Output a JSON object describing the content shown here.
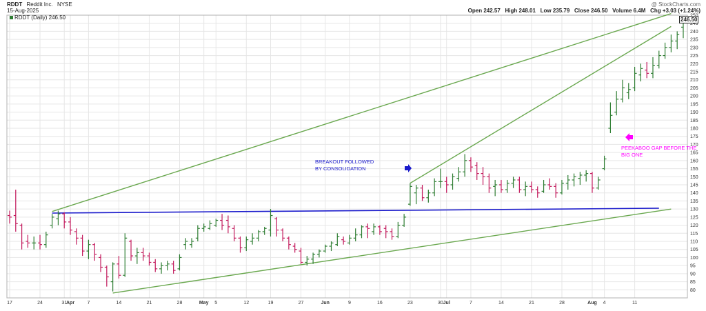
{
  "header": {
    "symbol": "RDDT",
    "company": "Reddit Inc.",
    "exchange": "NYSE",
    "date": "15-Aug-2025",
    "credit": "@ StockCharts.com",
    "ohlc_line": "Open 242.57   High 248.01   Low 235.79   Close 246.50   Volume 6.4M   Chg +3.03 (+1.24%)",
    "legend": "RDDT (Daily) 246.50",
    "last_price_tag": "246.50"
  },
  "colors": {
    "up": "#2e7d32",
    "down": "#c2185b",
    "trendline": "#6aa84f",
    "support": "#1a1acb",
    "annotation_blue": "#1a1acb",
    "annotation_magenta": "#ff00ff",
    "grid": "#e6e6e6"
  },
  "annotations": [
    {
      "text": "BREAKOUT FOLLOWED",
      "color": "#1a1acb"
    },
    {
      "text": "BY CONSOLIDATION",
      "color": "#1a1acb"
    },
    {
      "text": "PEEKABOO GAP BEFORE THE",
      "color": "#ff00ff"
    },
    {
      "text": "BIG ONE",
      "color": "#ff00ff"
    }
  ],
  "chart_data": {
    "type": "ohlc",
    "title": "RDDT (Daily) 246.50",
    "ylim": [
      75,
      250
    ],
    "yticks": [
      80,
      85,
      90,
      95,
      100,
      105,
      110,
      115,
      120,
      125,
      130,
      135,
      140,
      145,
      150,
      155,
      160,
      165,
      170,
      175,
      180,
      185,
      190,
      195,
      200,
      205,
      210,
      215,
      220,
      225,
      230,
      235,
      240,
      245,
      250
    ],
    "xtick_labels": [
      "17",
      "24",
      "31",
      "Apr",
      "7",
      "14",
      "21",
      "28",
      "May",
      "5",
      "12",
      "19",
      "27",
      "Jun",
      "9",
      "16",
      "23",
      "30",
      "Jul",
      "7",
      "14",
      "21",
      "28",
      "Aug",
      "4",
      "11"
    ],
    "grid": true,
    "bars": [
      {
        "o": 126,
        "h": 129,
        "l": 121,
        "c": 125
      },
      {
        "o": 126,
        "h": 142,
        "l": 116,
        "c": 121
      },
      {
        "o": 120,
        "h": 121,
        "l": 105,
        "c": 109
      },
      {
        "o": 110,
        "h": 114,
        "l": 106,
        "c": 109
      },
      {
        "o": 109,
        "h": 113,
        "l": 105,
        "c": 109
      },
      {
        "o": 109,
        "h": 114,
        "l": 105,
        "c": 108
      },
      {
        "o": 108,
        "h": 116,
        "l": 106,
        "c": 114
      },
      {
        "o": 120,
        "h": 127,
        "l": 118,
        "c": 125
      },
      {
        "o": 124,
        "h": 129,
        "l": 120,
        "c": 127
      },
      {
        "o": 127,
        "h": 128,
        "l": 118,
        "c": 122
      },
      {
        "o": 122,
        "h": 125,
        "l": 114,
        "c": 117
      },
      {
        "o": 116,
        "h": 118,
        "l": 108,
        "c": 112
      },
      {
        "o": 112,
        "h": 114,
        "l": 101,
        "c": 104
      },
      {
        "o": 104,
        "h": 111,
        "l": 99,
        "c": 108
      },
      {
        "o": 108,
        "h": 109,
        "l": 98,
        "c": 102
      },
      {
        "o": 100,
        "h": 102,
        "l": 91,
        "c": 94
      },
      {
        "o": 94,
        "h": 95,
        "l": 82,
        "c": 88
      },
      {
        "o": 85,
        "h": 97,
        "l": 79,
        "c": 96
      },
      {
        "o": 96,
        "h": 101,
        "l": 87,
        "c": 89
      },
      {
        "o": 89,
        "h": 115,
        "l": 88,
        "c": 112
      },
      {
        "o": 110,
        "h": 111,
        "l": 98,
        "c": 101
      },
      {
        "o": 101,
        "h": 106,
        "l": 96,
        "c": 103
      },
      {
        "o": 103,
        "h": 106,
        "l": 98,
        "c": 101
      },
      {
        "o": 101,
        "h": 103,
        "l": 95,
        "c": 97
      },
      {
        "o": 97,
        "h": 99,
        "l": 91,
        "c": 93
      },
      {
        "o": 93,
        "h": 97,
        "l": 90,
        "c": 95
      },
      {
        "o": 95,
        "h": 98,
        "l": 92,
        "c": 96
      },
      {
        "o": 96,
        "h": 98,
        "l": 90,
        "c": 92
      },
      {
        "o": 93,
        "h": 102,
        "l": 92,
        "c": 100
      },
      {
        "o": 108,
        "h": 112,
        "l": 105,
        "c": 110
      },
      {
        "o": 108,
        "h": 112,
        "l": 106,
        "c": 110
      },
      {
        "o": 112,
        "h": 120,
        "l": 110,
        "c": 118
      },
      {
        "o": 118,
        "h": 121,
        "l": 116,
        "c": 119
      },
      {
        "o": 118,
        "h": 123,
        "l": 117,
        "c": 121
      },
      {
        "o": 120,
        "h": 124,
        "l": 119,
        "c": 123
      },
      {
        "o": 123,
        "h": 127,
        "l": 117,
        "c": 120
      },
      {
        "o": 123,
        "h": 126,
        "l": 115,
        "c": 119
      },
      {
        "o": 118,
        "h": 120,
        "l": 110,
        "c": 112
      },
      {
        "o": 112,
        "h": 113,
        "l": 103,
        "c": 106
      },
      {
        "o": 106,
        "h": 113,
        "l": 104,
        "c": 111
      },
      {
        "o": 110,
        "h": 115,
        "l": 108,
        "c": 112
      },
      {
        "o": 112,
        "h": 117,
        "l": 110,
        "c": 116
      },
      {
        "o": 116,
        "h": 119,
        "l": 114,
        "c": 118
      },
      {
        "o": 117,
        "h": 130,
        "l": 113,
        "c": 126
      },
      {
        "o": 124,
        "h": 125,
        "l": 113,
        "c": 117
      },
      {
        "o": 117,
        "h": 118,
        "l": 110,
        "c": 112
      },
      {
        "o": 112,
        "h": 113,
        "l": 105,
        "c": 108
      },
      {
        "o": 107,
        "h": 109,
        "l": 103,
        "c": 105
      },
      {
        "o": 104,
        "h": 106,
        "l": 96,
        "c": 97
      },
      {
        "o": 97,
        "h": 101,
        "l": 95,
        "c": 99
      },
      {
        "o": 99,
        "h": 103,
        "l": 96,
        "c": 102
      },
      {
        "o": 102,
        "h": 105,
        "l": 100,
        "c": 104
      },
      {
        "o": 104,
        "h": 108,
        "l": 103,
        "c": 107
      },
      {
        "o": 107,
        "h": 110,
        "l": 104,
        "c": 109
      },
      {
        "o": 108,
        "h": 115,
        "l": 107,
        "c": 113
      },
      {
        "o": 111,
        "h": 113,
        "l": 108,
        "c": 110
      },
      {
        "o": 109,
        "h": 114,
        "l": 108,
        "c": 112
      },
      {
        "o": 112,
        "h": 118,
        "l": 110,
        "c": 114
      },
      {
        "o": 114,
        "h": 120,
        "l": 112,
        "c": 119
      },
      {
        "o": 119,
        "h": 121,
        "l": 112,
        "c": 118
      },
      {
        "o": 116,
        "h": 121,
        "l": 114,
        "c": 119
      },
      {
        "o": 119,
        "h": 120,
        "l": 114,
        "c": 116
      },
      {
        "o": 118,
        "h": 120,
        "l": 112,
        "c": 116
      },
      {
        "o": 116,
        "h": 118,
        "l": 111,
        "c": 113
      },
      {
        "o": 113,
        "h": 122,
        "l": 112,
        "c": 120
      },
      {
        "o": 120,
        "h": 127,
        "l": 119,
        "c": 125
      },
      {
        "o": 133,
        "h": 146,
        "l": 132,
        "c": 144
      },
      {
        "o": 140,
        "h": 145,
        "l": 133,
        "c": 143
      },
      {
        "o": 143,
        "h": 145,
        "l": 135,
        "c": 137
      },
      {
        "o": 137,
        "h": 142,
        "l": 134,
        "c": 140
      },
      {
        "o": 140,
        "h": 149,
        "l": 138,
        "c": 147
      },
      {
        "o": 147,
        "h": 155,
        "l": 143,
        "c": 147
      },
      {
        "o": 147,
        "h": 150,
        "l": 140,
        "c": 145
      },
      {
        "o": 145,
        "h": 152,
        "l": 142,
        "c": 150
      },
      {
        "o": 149,
        "h": 156,
        "l": 147,
        "c": 153
      },
      {
        "o": 153,
        "h": 164,
        "l": 150,
        "c": 160
      },
      {
        "o": 160,
        "h": 162,
        "l": 153,
        "c": 156
      },
      {
        "o": 157,
        "h": 159,
        "l": 148,
        "c": 152
      },
      {
        "o": 152,
        "h": 156,
        "l": 145,
        "c": 150
      },
      {
        "o": 150,
        "h": 152,
        "l": 140,
        "c": 143
      },
      {
        "o": 144,
        "h": 148,
        "l": 138,
        "c": 145
      },
      {
        "o": 145,
        "h": 148,
        "l": 140,
        "c": 142
      },
      {
        "o": 142,
        "h": 148,
        "l": 140,
        "c": 146
      },
      {
        "o": 146,
        "h": 150,
        "l": 143,
        "c": 148
      },
      {
        "o": 148,
        "h": 150,
        "l": 140,
        "c": 142
      },
      {
        "o": 142,
        "h": 147,
        "l": 138,
        "c": 144
      },
      {
        "o": 144,
        "h": 147,
        "l": 140,
        "c": 142
      },
      {
        "o": 142,
        "h": 144,
        "l": 137,
        "c": 140
      },
      {
        "o": 141,
        "h": 148,
        "l": 140,
        "c": 145
      },
      {
        "o": 145,
        "h": 149,
        "l": 142,
        "c": 144
      },
      {
        "o": 144,
        "h": 146,
        "l": 137,
        "c": 140
      },
      {
        "o": 140,
        "h": 148,
        "l": 139,
        "c": 146
      },
      {
        "o": 146,
        "h": 151,
        "l": 142,
        "c": 148
      },
      {
        "o": 148,
        "h": 152,
        "l": 144,
        "c": 150
      },
      {
        "o": 149,
        "h": 153,
        "l": 145,
        "c": 151
      },
      {
        "o": 151,
        "h": 154,
        "l": 147,
        "c": 152
      },
      {
        "o": 152,
        "h": 153,
        "l": 140,
        "c": 143
      },
      {
        "o": 143,
        "h": 150,
        "l": 142,
        "c": 148
      },
      {
        "o": 155,
        "h": 163,
        "l": 154,
        "c": 161
      },
      {
        "o": 180,
        "h": 196,
        "l": 177,
        "c": 188
      },
      {
        "o": 190,
        "h": 203,
        "l": 188,
        "c": 198
      },
      {
        "o": 198,
        "h": 210,
        "l": 196,
        "c": 205
      },
      {
        "o": 202,
        "h": 208,
        "l": 198,
        "c": 204
      },
      {
        "o": 205,
        "h": 218,
        "l": 203,
        "c": 214
      },
      {
        "o": 213,
        "h": 220,
        "l": 209,
        "c": 217
      },
      {
        "o": 216,
        "h": 221,
        "l": 211,
        "c": 214
      },
      {
        "o": 214,
        "h": 224,
        "l": 211,
        "c": 219
      },
      {
        "o": 219,
        "h": 228,
        "l": 217,
        "c": 225
      },
      {
        "o": 225,
        "h": 233,
        "l": 223,
        "c": 230
      },
      {
        "o": 230,
        "h": 238,
        "l": 227,
        "c": 234
      },
      {
        "o": 234,
        "h": 240,
        "l": 229,
        "c": 238
      },
      {
        "o": 242.57,
        "h": 248.01,
        "l": 235.79,
        "c": 246.5
      }
    ]
  }
}
